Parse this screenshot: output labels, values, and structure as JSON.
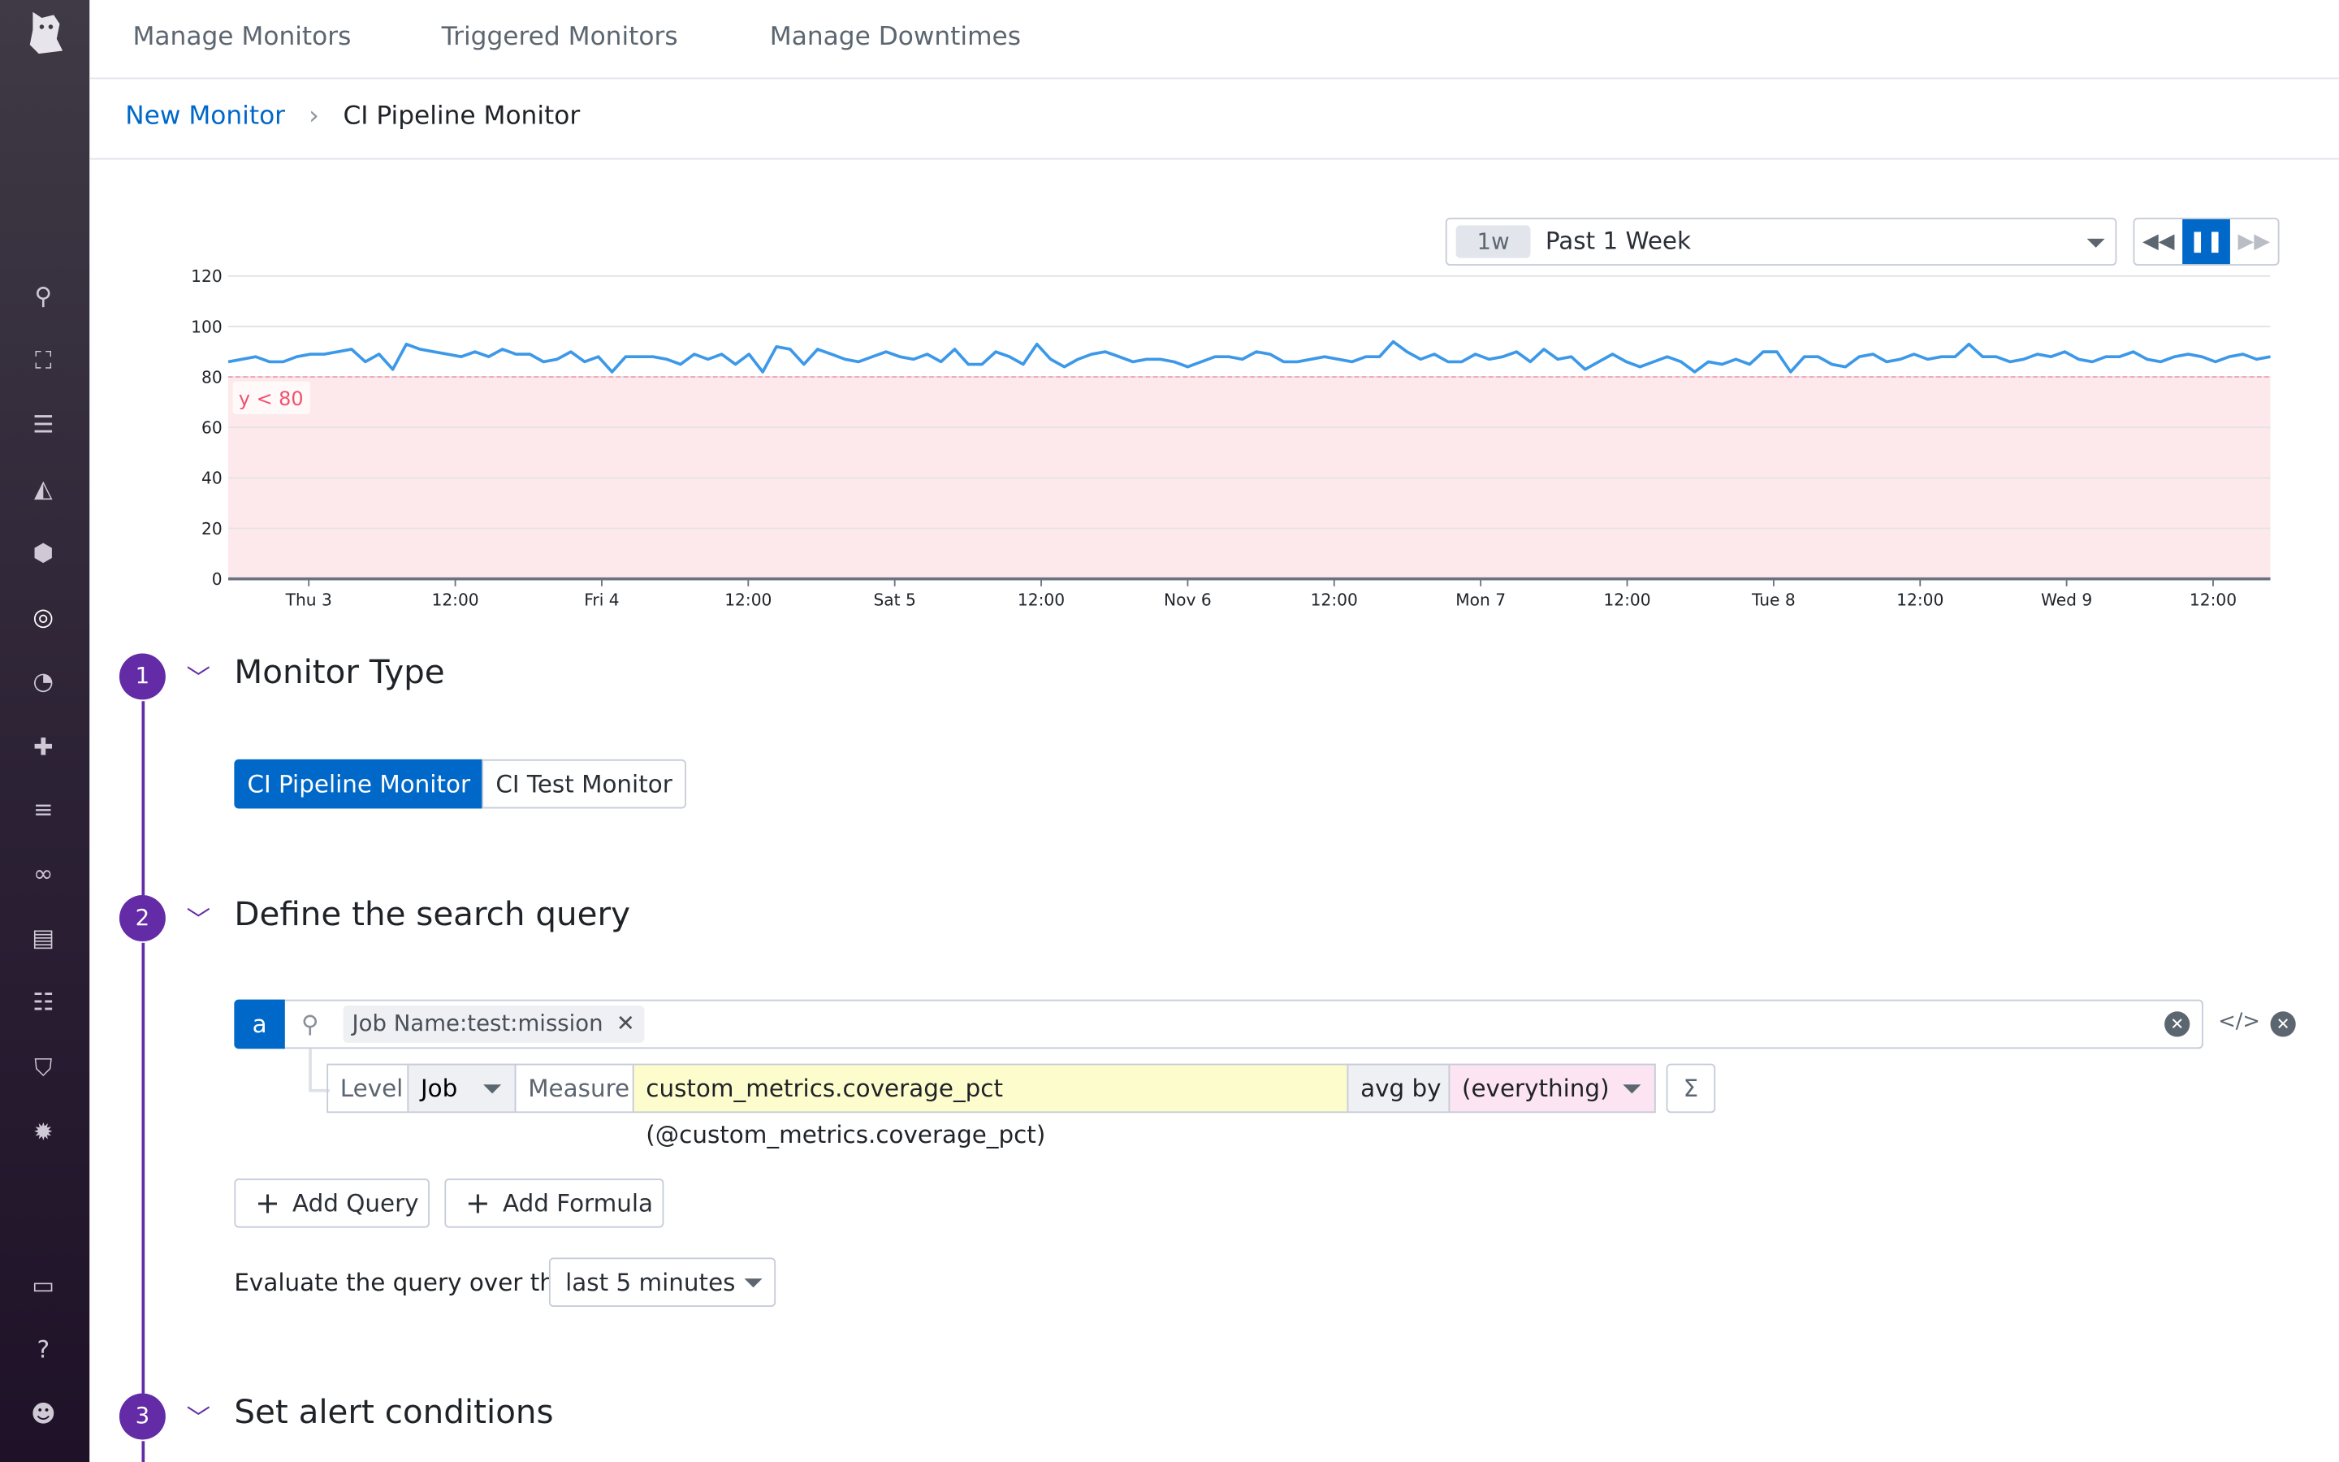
{
  "topnav": {
    "items": [
      "Manage Monitors",
      "Triggered Monitors",
      "Manage Downtimes"
    ]
  },
  "breadcrumb": {
    "parent": "New Monitor",
    "separator": "›",
    "current": "CI Pipeline Monitor"
  },
  "timeframe": {
    "badge": "1w",
    "label": "Past 1 Week"
  },
  "colors": {
    "accent": "#0068c9",
    "brand": "#632ca6",
    "series": "#3c98e8",
    "alert_fill": "#fde9eb",
    "alert_text": "#f0506e"
  },
  "sidebar": {
    "icons": [
      "search-icon",
      "binoculars-icon",
      "list-icon",
      "area-chart-icon",
      "hexagons-icon",
      "monitor-icon",
      "gauge-icon",
      "puzzle-icon",
      "filter-icon",
      "link-icon",
      "notebook-icon",
      "search-list-icon",
      "shield-icon",
      "settings-icon",
      "chat-icon",
      "help-icon",
      "avatar-icon"
    ]
  },
  "chart_data": {
    "type": "line",
    "yticks": [
      "0",
      "20",
      "40",
      "60",
      "80",
      "100",
      "120"
    ],
    "ylim": [
      0,
      120
    ],
    "xticks": [
      "Thu 3",
      "12:00",
      "Fri 4",
      "12:00",
      "Sat 5",
      "12:00",
      "Nov 6",
      "12:00",
      "Mon 7",
      "12:00",
      "Tue 8",
      "12:00",
      "Wed 9",
      "12:00"
    ],
    "grid": true,
    "threshold": {
      "label": "y < 80",
      "value": 80
    },
    "values": [
      86,
      87,
      88,
      86,
      86,
      88,
      89,
      89,
      90,
      91,
      86,
      89,
      83,
      93,
      91,
      90,
      89,
      88,
      90,
      88,
      91,
      89,
      89,
      86,
      87,
      90,
      86,
      88,
      82,
      88,
      88,
      88,
      87,
      85,
      89,
      87,
      89,
      85,
      89,
      82,
      92,
      91,
      85,
      91,
      89,
      87,
      86,
      88,
      90,
      88,
      87,
      89,
      86,
      91,
      85,
      85,
      90,
      88,
      85,
      93,
      87,
      84,
      87,
      89,
      90,
      88,
      86,
      87,
      87,
      86,
      84,
      86,
      88,
      88,
      87,
      90,
      89,
      86,
      86,
      87,
      88,
      87,
      86,
      88,
      88,
      94,
      90,
      87,
      89,
      86,
      86,
      89,
      87,
      88,
      90,
      86,
      91,
      87,
      88,
      83,
      86,
      89,
      86,
      84,
      86,
      88,
      86,
      82,
      86,
      85,
      87,
      85,
      90,
      90,
      82,
      88,
      88,
      85,
      84,
      88,
      89,
      86,
      87,
      89,
      87,
      88,
      88,
      93,
      88,
      88,
      86,
      87,
      89,
      88,
      90,
      87,
      86,
      88,
      88,
      90,
      87,
      86,
      88,
      89,
      88,
      86,
      88,
      89,
      87,
      88
    ]
  },
  "sections": [
    {
      "number": "1",
      "title": "Monitor Type"
    },
    {
      "number": "2",
      "title": "Define the search query"
    },
    {
      "number": "3",
      "title": "Set alert conditions"
    }
  ],
  "monitor_type": {
    "options": [
      "CI Pipeline Monitor",
      "CI Test Monitor"
    ],
    "selected": "CI Pipeline Monitor"
  },
  "query": {
    "letter": "a",
    "tag": "Job Name:test:mission",
    "level_label": "Level",
    "level_value": "Job",
    "measure_label": "Measure",
    "measure_value": "custom_metrics.coverage_pct (@custom_metrics.coverage_pct)",
    "agg_label": "avg by",
    "group_value": "(everything)",
    "sigma": "Σ",
    "code": "</>"
  },
  "actions": {
    "add_query": "Add Query",
    "add_formula": "Add Formula"
  },
  "evaluate": {
    "label": "Evaluate the query over the",
    "value": "last 5 minutes"
  }
}
